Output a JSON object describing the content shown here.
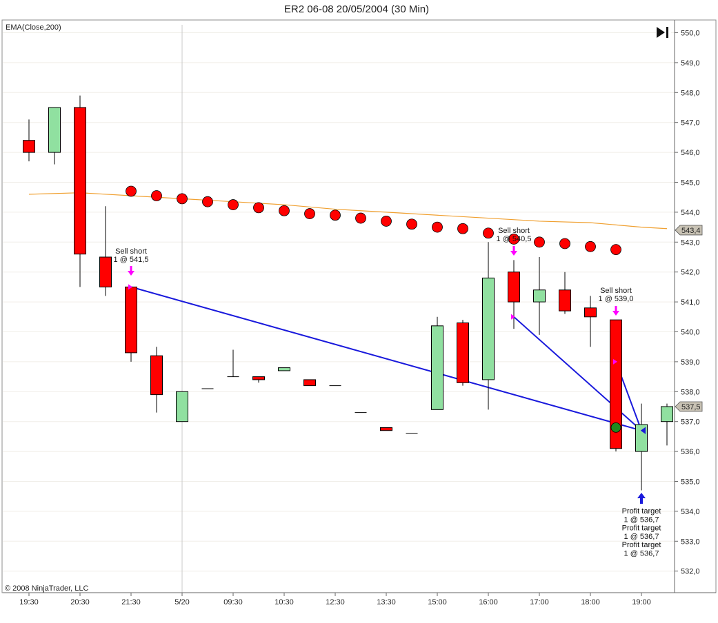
{
  "chart_data": {
    "type": "candlestick",
    "title": "ER2 06-08  20/05/2004 (30 Min)",
    "indicator_label": "EMA(Close,200)",
    "copyright": "© 2008 NinjaTrader, LLC",
    "y_axis": {
      "range": [
        531.6,
        550.5
      ],
      "ticks": [
        "550,0",
        "549,0",
        "548,0",
        "547,0",
        "546,0",
        "545,0",
        "544,0",
        "543,0",
        "542,0",
        "541,0",
        "540,0",
        "539,0",
        "538,0",
        "537,0",
        "536,0",
        "535,0",
        "534,0",
        "533,0",
        "532,0"
      ]
    },
    "x_axis": {
      "labels": [
        "19:30",
        "20:30",
        "21:30",
        "5/20",
        "09:30",
        "10:30",
        "12:30",
        "13:30",
        "15:00",
        "16:00",
        "17:00",
        "18:00",
        "19:00"
      ],
      "label_bar_index": [
        0,
        2,
        4,
        6,
        8,
        10,
        12,
        14,
        16,
        18,
        20,
        22,
        24
      ]
    },
    "session_break_index": 6,
    "candles": [
      {
        "o": 546.4,
        "h": 547.1,
        "l": 545.7,
        "c": 546.0
      },
      {
        "o": 546.0,
        "h": 547.5,
        "l": 545.6,
        "c": 547.5
      },
      {
        "o": 547.5,
        "h": 547.9,
        "l": 541.5,
        "c": 542.6
      },
      {
        "o": 542.5,
        "h": 544.2,
        "l": 541.2,
        "c": 541.5
      },
      {
        "o": 541.5,
        "h": 541.5,
        "l": 539.0,
        "c": 539.3
      },
      {
        "o": 539.2,
        "h": 539.5,
        "l": 537.3,
        "c": 537.9
      },
      {
        "o": 537.0,
        "h": 538.0,
        "l": 537.0,
        "c": 538.0
      },
      {
        "o": 538.1,
        "h": 538.1,
        "l": 538.1,
        "c": 538.1
      },
      {
        "o": 538.5,
        "h": 539.4,
        "l": 538.5,
        "c": 538.5
      },
      {
        "o": 538.5,
        "h": 538.5,
        "l": 538.3,
        "c": 538.4
      },
      {
        "o": 538.7,
        "h": 538.8,
        "l": 538.7,
        "c": 538.8
      },
      {
        "o": 538.4,
        "h": 538.4,
        "l": 538.2,
        "c": 538.2
      },
      {
        "o": 538.2,
        "h": 538.2,
        "l": 538.2,
        "c": 538.2
      },
      {
        "o": 537.3,
        "h": 537.3,
        "l": 537.3,
        "c": 537.3
      },
      {
        "o": 536.8,
        "h": 536.8,
        "l": 536.7,
        "c": 536.7
      },
      {
        "o": 536.6,
        "h": 536.6,
        "l": 536.6,
        "c": 536.6
      },
      {
        "o": 537.4,
        "h": 540.5,
        "l": 537.4,
        "c": 540.2
      },
      {
        "o": 540.3,
        "h": 540.4,
        "l": 538.2,
        "c": 538.3
      },
      {
        "o": 538.4,
        "h": 543.0,
        "l": 537.4,
        "c": 541.8
      },
      {
        "o": 542.0,
        "h": 542.4,
        "l": 540.1,
        "c": 541.0
      },
      {
        "o": 541.0,
        "h": 542.5,
        "l": 539.9,
        "c": 541.4
      },
      {
        "o": 541.4,
        "h": 542.0,
        "l": 540.6,
        "c": 540.7
      },
      {
        "o": 540.8,
        "h": 541.2,
        "l": 539.5,
        "c": 540.5
      },
      {
        "o": 540.4,
        "h": 540.4,
        "l": 536.0,
        "c": 536.1
      },
      {
        "o": 536.0,
        "h": 537.6,
        "l": 534.7,
        "c": 536.9
      },
      {
        "o": 537.0,
        "h": 537.6,
        "l": 536.2,
        "c": 537.5
      }
    ],
    "stop_dots": {
      "bar_index": [
        4,
        5,
        6,
        7,
        8,
        9,
        10,
        11,
        12,
        13,
        14,
        15,
        16,
        17,
        18,
        19,
        20,
        21,
        22,
        23
      ],
      "values": [
        544.7,
        544.55,
        544.45,
        544.35,
        544.25,
        544.15,
        544.05,
        543.95,
        543.9,
        543.8,
        543.7,
        543.6,
        543.5,
        543.45,
        543.3,
        543.1,
        543.0,
        542.95,
        542.85,
        542.75
      ]
    },
    "ema": {
      "bar_index": [
        0,
        2,
        4,
        6,
        8,
        10,
        12,
        14,
        16,
        18,
        20,
        22,
        24,
        25
      ],
      "values": [
        544.6,
        544.65,
        544.55,
        544.45,
        544.35,
        544.25,
        544.1,
        544.0,
        543.9,
        543.8,
        543.7,
        543.65,
        543.5,
        543.45
      ]
    },
    "price_markers": {
      "ema_last": "543,4",
      "last_close": "537,5"
    },
    "trades": [
      {
        "entry_bar": 4,
        "entry_price": 541.5,
        "exit_bar": 24,
        "exit_price": 536.7
      },
      {
        "entry_bar": 19,
        "entry_price": 540.5,
        "exit_bar": 24,
        "exit_price": 536.7
      },
      {
        "entry_bar": 23,
        "entry_price": 539.0,
        "exit_bar": 24,
        "exit_price": 536.7
      }
    ],
    "annotations": {
      "sell1": [
        "Sell short",
        "1 @ 541,5"
      ],
      "sell2": [
        "Sell short",
        "1 @ 540,5"
      ],
      "sell3": [
        "Sell short",
        "1 @ 539,0"
      ],
      "profit": [
        "Profit target",
        "1 @ 536,7",
        "Profit target",
        "1 @ 536,7",
        "Profit target",
        "1 @ 536,7"
      ]
    },
    "colors": {
      "up": "#90e0a0",
      "down": "#ff0000",
      "dot": "#ff0000",
      "ema": "#f0a030",
      "trade_line": "#1a1adc",
      "entry_arrow": "#ff00ff",
      "exit_arrow": "#1a1adc",
      "fill_dot": "#1e8a1e",
      "grid": "#f0eee8"
    }
  }
}
